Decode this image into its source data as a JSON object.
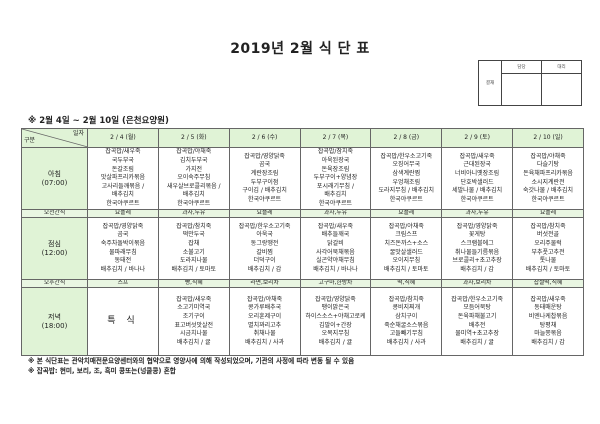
{
  "title": "2019년 2월 식 단 표",
  "approval": {
    "label": "결재",
    "cols": [
      "담당",
      "대리"
    ]
  },
  "period": "※ 2월 4일 ~ 2월 10일 (은천요양원)",
  "header": {
    "corner_top": "일자",
    "corner_bottom": "구분",
    "days": [
      "2 / 4 (월)",
      "2 / 5 (화)",
      "2 / 6 (수)",
      "2 / 7 (목)",
      "2 / 8 (금)",
      "2 / 9 (토)",
      "2 / 10 (일)"
    ]
  },
  "rows": {
    "breakfast": {
      "label": "아침",
      "time": "(07:00)",
      "days": [
        [
          "잡곡밥/새우죽",
          "국두부국",
          "돈갈조림",
          "맛살파프리카볶음",
          "고사리들깨볶음 /",
          "배추김치",
          "한국야쿠르트"
        ],
        [
          "잡곡밥/야채죽",
          "김치두부국",
          "가지전",
          "오이숙주무침",
          "새우살브로콜리볶음 /",
          "배추김치",
          "한국야쿠르트"
        ],
        [
          "잡곡밥/영양닭죽",
          "곰국",
          "계란장조림",
          "두부구이점",
          "구이김 / 배추김치",
          "한국야쿠르트"
        ],
        [
          "잡곡밥/참치죽",
          "아욱된장국",
          "돈육장조림",
          "두부구이+양념장",
          "포시래기무침 /",
          "배추김치",
          "한국야쿠르트"
        ],
        [
          "잡곡밥/한우소고기죽",
          "오징어무국",
          "삼색계란찜",
          "우엉채조림",
          "도라지무침 / 배추김치",
          "한국야쿠르트"
        ],
        [
          "잡곡밥/새우죽",
          "근대된장국",
          "너비아니옛장조림",
          "단호박샐러드",
          "세발나물 / 배추김치",
          "한국야쿠르트"
        ],
        [
          "잡곡밥/야채죽",
          "다슬기탕",
          "돈육채파프리카볶음",
          "소시지계란전",
          "숙갓나물 / 배추김치",
          "한국야쿠르트"
        ]
      ]
    },
    "morning_snack": {
      "label": "오전간식",
      "days": [
        "요플레",
        "과자,두유",
        "요플레",
        "과자,두유",
        "요플레",
        "과자,두유",
        "요플레"
      ]
    },
    "lunch": {
      "label": "점심",
      "time": "(12:00)",
      "days": [
        [
          "잡곡밥/영양닭죽",
          "곰국",
          "숙주차돌박이볶음",
          "물파래무침",
          "동태전",
          "배추김치 / 바나나"
        ],
        [
          "잡곡밥/참치죽",
          "떡만두국",
          "잡채",
          "소불고기",
          "도라지나물",
          "배추김치 / 토마토"
        ],
        [
          "잡곡밥/한우소고기죽",
          "아욱국",
          "동그랑땡전",
          "갈비찜",
          "더덕구이",
          "배추김치 / 감"
        ],
        [
          "잡곡밥/새우죽",
          "배추들깨국",
          "닭갈비",
          "사각어묵채볶음",
          "실곤약야채무침",
          "배추김치 / 바나나"
        ],
        [
          "잡곡밥/야채죽",
          "크림스프",
          "치즈돈까스+소스",
          "꿀맛살샐러드",
          "오이지무침",
          "배추김치 / 토마토"
        ],
        [
          "잡곡밥/영양닭죽",
          "꽃게탕",
          "스크램블에그",
          "취나물들기름볶음",
          "브로콜리+초고추장",
          "배추김치 / 감"
        ],
        [
          "잡곡밥/참치죽",
          "버섯전골",
          "오리주물럭",
          "부추풋고추전",
          "톳나물",
          "배추김치 / 토마토"
        ]
      ]
    },
    "afternoon_snack": {
      "label": "오후간식",
      "days": [
        "스프",
        "빵,식혜",
        "라면,보리차",
        "고구마,한방차",
        "떡,식혜",
        "과자,보리차",
        "찹쌀떡,식혜"
      ]
    },
    "dinner": {
      "label": "저녁",
      "time": "(18:00)",
      "special": "특 식",
      "days": [
        [
          "잡곡밥/새우죽",
          "소고기미역국",
          "조기구이",
          "표고버섯맛살전",
          "시금치나물",
          "배추김치 / 귤"
        ],
        [
          "잡곡밥/야채죽",
          "콩가루배추국",
          "오리훈제구이",
          "멸치꽈리고추",
          "취채나물",
          "배추김치 / 사과"
        ],
        [
          "잡곡밥/영양닭죽",
          "팽이맑은국",
          "하이스소스+야채고로케",
          "김말이+간장",
          "오복지무침",
          "배추김치 / 귤"
        ],
        [
          "잡곡밥/참치죽",
          "콩비지찌개",
          "삼치구이",
          "죽순채굴소스볶음",
          "고들빼기무침",
          "배추김치 / 사과"
        ],
        [
          "잡곡밥/한우소고기죽",
          "모듬어묵탕",
          "돈육파채불고기",
          "배추전",
          "물미역+초고추장",
          "배추김치 / 귤"
        ],
        [
          "잡곡밥/새우죽",
          "동태매운탕",
          "비엔나케찹볶음",
          "탕평채",
          "마늘쫑볶음",
          "배추김치 / 감"
        ]
      ]
    }
  },
  "notes": [
    "※ 본 식단표는 관악치매전문요양센터와의 협약으로 영양사에 의해 작성되었으며, 기관의 사정에 따라 변동 될 수 있음",
    "※ 잡곡밥: 현미, 보리, 조, 흑미 콩또는(넝쿨콩) 혼합"
  ]
}
